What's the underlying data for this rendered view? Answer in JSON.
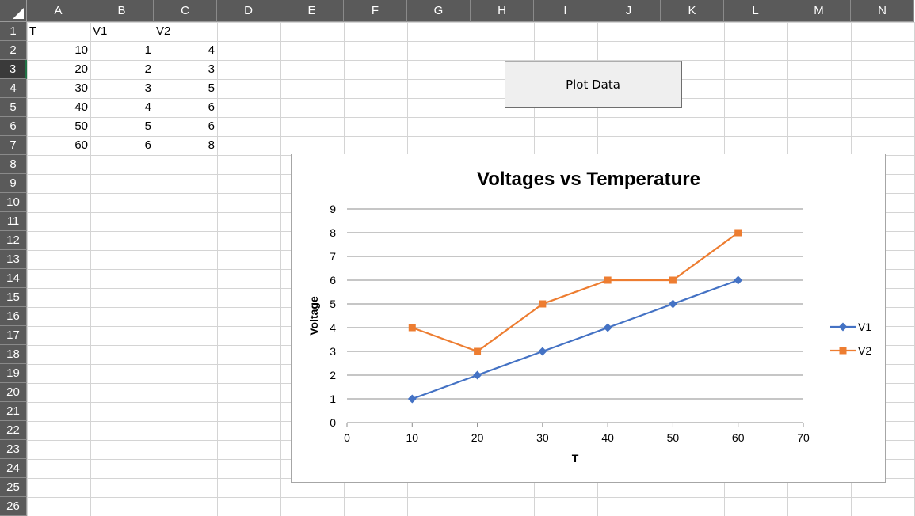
{
  "columns": [
    "A",
    "B",
    "C",
    "D",
    "E",
    "F",
    "G",
    "H",
    "I",
    "J",
    "K",
    "L",
    "M",
    "N"
  ],
  "rows": [
    "1",
    "2",
    "3",
    "4",
    "5",
    "6",
    "7",
    "8",
    "9",
    "10",
    "11",
    "12",
    "13",
    "14",
    "15",
    "16",
    "17",
    "18",
    "19",
    "20",
    "21",
    "22",
    "23",
    "24",
    "25",
    "26"
  ],
  "selected_row": "3",
  "table": {
    "headers": [
      "T",
      "V1",
      "V2"
    ],
    "rows": [
      [
        "10",
        "1",
        "4"
      ],
      [
        "20",
        "2",
        "3"
      ],
      [
        "30",
        "3",
        "5"
      ],
      [
        "40",
        "4",
        "6"
      ],
      [
        "50",
        "5",
        "6"
      ],
      [
        "60",
        "6",
        "8"
      ]
    ]
  },
  "button": {
    "label": "Plot Data"
  },
  "chart_data": {
    "type": "line",
    "title": "Voltages vs Temperature",
    "xlabel": "T",
    "ylabel": "Voltage",
    "x": [
      10,
      20,
      30,
      40,
      50,
      60
    ],
    "series": [
      {
        "name": "V1",
        "values": [
          1,
          2,
          3,
          4,
          5,
          6
        ],
        "color": "#4472C4",
        "marker": "diamond"
      },
      {
        "name": "V2",
        "values": [
          4,
          3,
          5,
          6,
          6,
          8
        ],
        "color": "#ED7D31",
        "marker": "square"
      }
    ],
    "xlim": [
      0,
      70
    ],
    "ylim": [
      0,
      9
    ],
    "xticks": [
      "0",
      "10",
      "20",
      "30",
      "40",
      "50",
      "60",
      "70"
    ],
    "yticks": [
      "0",
      "1",
      "2",
      "3",
      "4",
      "5",
      "6",
      "7",
      "8",
      "9"
    ],
    "grid": "horizontal",
    "legend": "right"
  }
}
